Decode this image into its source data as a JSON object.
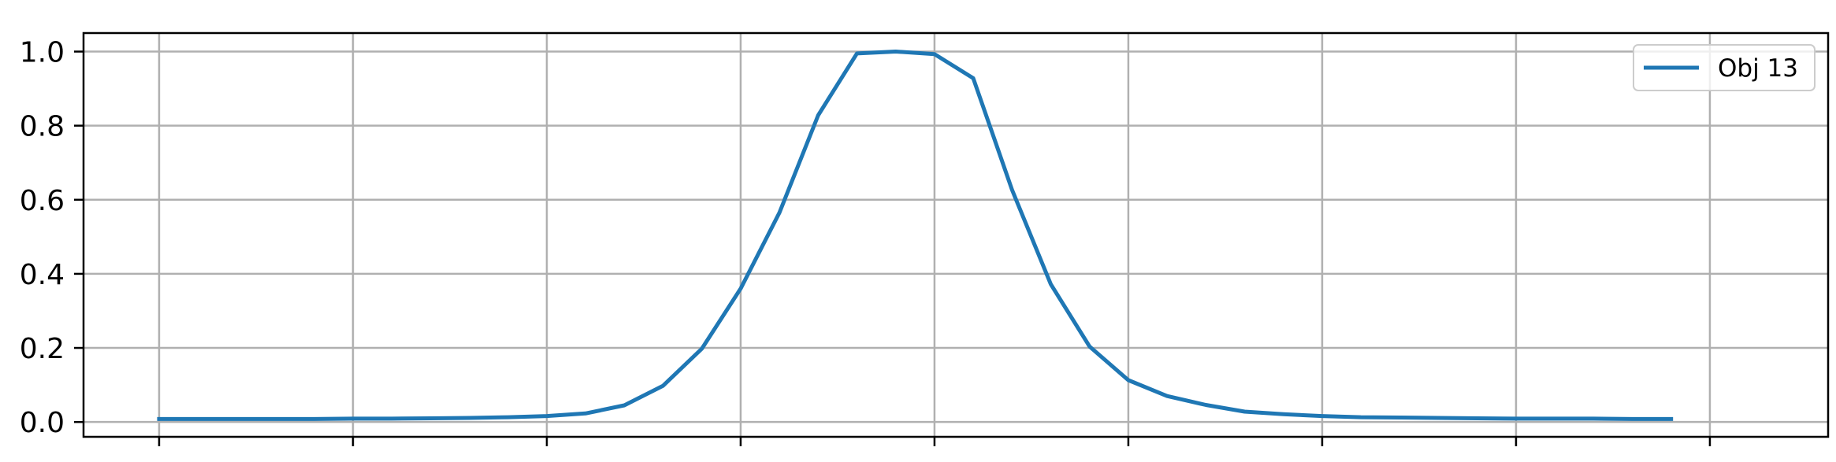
{
  "chart_data": {
    "type": "line",
    "title": "",
    "xlabel": "",
    "ylabel": "",
    "xlim": [
      -0.39,
      8.61
    ],
    "ylim": [
      -0.04,
      1.05
    ],
    "x_ticks": [
      0,
      1,
      2,
      3,
      4,
      5,
      6,
      7,
      8
    ],
    "x_tick_labels": [
      "",
      "",
      "",
      "",
      "",
      "",
      "",
      "",
      ""
    ],
    "y_ticks": [
      0.0,
      0.2,
      0.4,
      0.6,
      0.8,
      1.0
    ],
    "y_tick_labels": [
      "0.0",
      "0.2",
      "0.4",
      "0.6",
      "0.8",
      "1.0"
    ],
    "grid": true,
    "legend": {
      "position": "top-right",
      "entries": [
        "Obj 13"
      ]
    },
    "series": [
      {
        "name": "Obj 13",
        "color": "#1f77b4",
        "x": [
          0,
          0.2,
          0.4,
          0.6,
          0.8,
          1.0,
          1.2,
          1.4,
          1.6,
          1.8,
          2.0,
          2.2,
          2.4,
          2.6,
          2.8,
          3.0,
          3.2,
          3.4,
          3.6,
          3.8,
          4.0,
          4.2,
          4.4,
          4.6,
          4.8,
          5.0,
          5.2,
          5.4,
          5.6,
          5.8,
          6.0,
          6.2,
          6.4,
          6.6,
          6.8,
          7.0,
          7.2,
          7.4,
          7.6,
          7.8
        ],
        "y": [
          0.008,
          0.008,
          0.008,
          0.008,
          0.008,
          0.009,
          0.009,
          0.01,
          0.011,
          0.013,
          0.016,
          0.023,
          0.045,
          0.098,
          0.198,
          0.36,
          0.565,
          0.828,
          0.995,
          1.0,
          0.993,
          0.928,
          0.627,
          0.372,
          0.204,
          0.113,
          0.07,
          0.046,
          0.028,
          0.021,
          0.016,
          0.013,
          0.012,
          0.011,
          0.01,
          0.009,
          0.009,
          0.009,
          0.008,
          0.008
        ]
      }
    ]
  }
}
